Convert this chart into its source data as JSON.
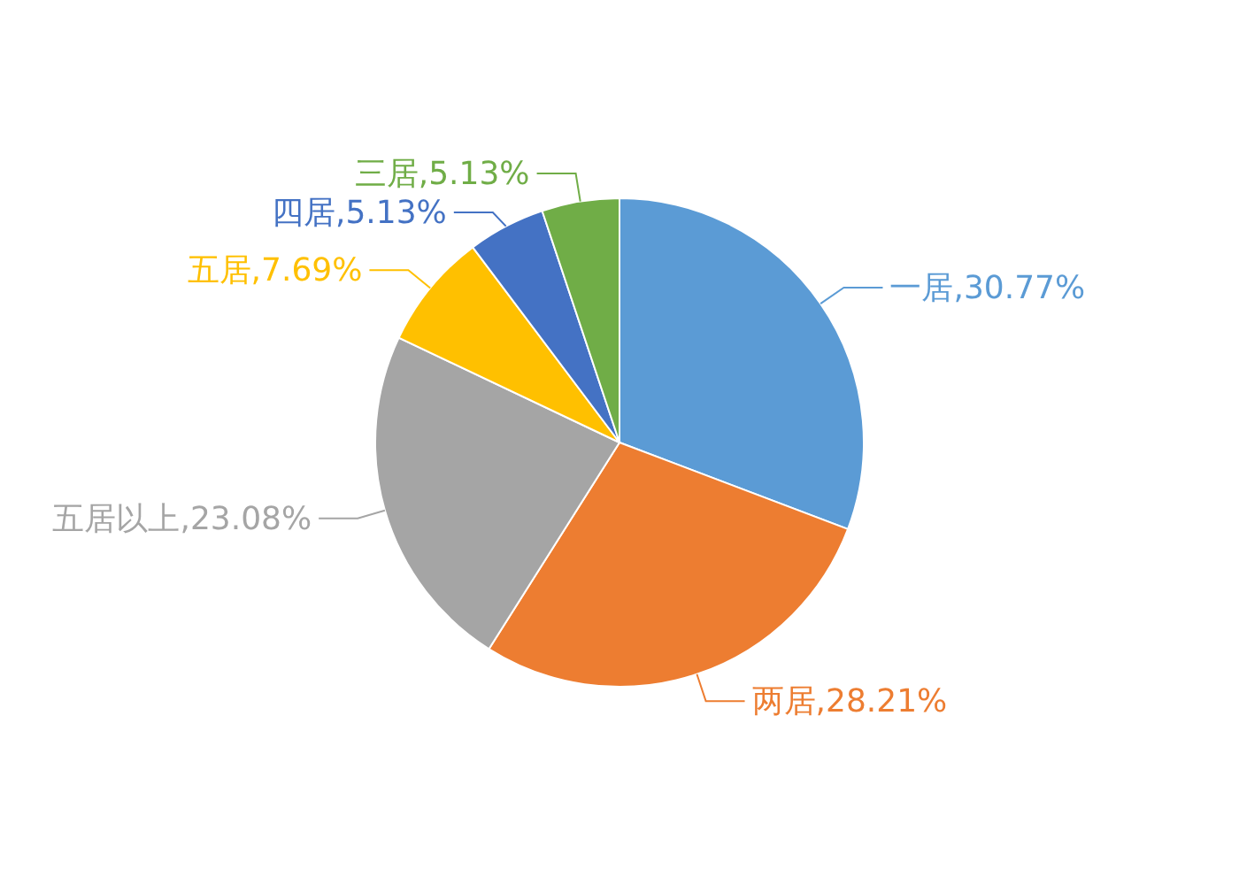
{
  "chart_data": {
    "type": "pie",
    "categories": [
      "一居",
      "两居",
      "五居以上",
      "五居",
      "四居",
      "三居"
    ],
    "values": [
      30.77,
      28.21,
      23.08,
      7.69,
      5.13,
      5.13
    ],
    "value_labels": [
      "30.77%",
      "28.21%",
      "23.08%",
      "7.69%",
      "5.13%",
      "5.13%"
    ],
    "colors": [
      "#5b9bd5",
      "#ed7d31",
      "#a5a5a5",
      "#ffc000",
      "#4472c4",
      "#70ad47"
    ],
    "legend": false
  }
}
